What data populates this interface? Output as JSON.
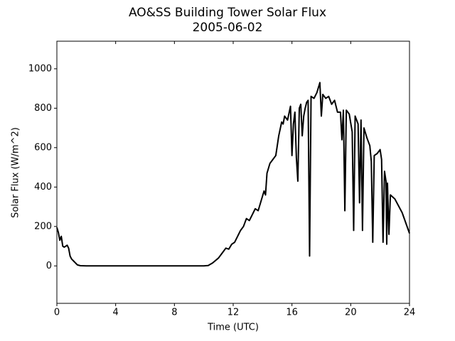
{
  "chart_data": {
    "type": "line",
    "title": "AO&SS Building Tower Solar Flux",
    "subtitle": "2005-06-02",
    "x_label": "Time (UTC)",
    "y_label": "Solar Flux (W/m^2)",
    "color": "#000000",
    "xlim": [
      0,
      24
    ],
    "xticks": [
      0,
      4,
      8,
      12,
      16,
      20,
      24
    ],
    "ylim": [
      -190,
      1140
    ],
    "yticks": [
      0,
      200,
      400,
      600,
      800,
      1000
    ],
    "x": [
      0,
      0.1,
      0.2,
      0.3,
      0.4,
      0.5,
      0.6,
      0.7,
      0.8,
      0.9,
      1.0,
      1.2,
      1.4,
      1.6,
      2,
      10,
      10.3,
      10.6,
      11,
      11.3,
      11.5,
      11.7,
      11.9,
      12.1,
      12.3,
      12.5,
      12.7,
      12.9,
      13.1,
      13.3,
      13.5,
      13.7,
      13.9,
      14.1,
      14.2,
      14.3,
      14.5,
      14.7,
      14.9,
      15.1,
      15.3,
      15.4,
      15.5,
      15.7,
      15.9,
      16.0,
      16.1,
      16.2,
      16.3,
      16.4,
      16.5,
      16.6,
      16.7,
      16.8,
      16.9,
      17.0,
      17.1,
      17.2,
      17.3,
      17.5,
      17.7,
      17.9,
      18.0,
      18.1,
      18.3,
      18.5,
      18.7,
      18.9,
      19.1,
      19.3,
      19.4,
      19.5,
      19.6,
      19.7,
      19.9,
      20.1,
      20.2,
      20.3,
      20.5,
      20.6,
      20.7,
      20.8,
      20.9,
      21.1,
      21.3,
      21.4,
      21.5,
      21.6,
      21.8,
      22.0,
      22.1,
      22.2,
      22.3,
      22.4,
      22.45,
      22.5,
      22.6,
      22.7,
      23.0,
      23.5,
      24
    ],
    "values": [
      195,
      170,
      130,
      150,
      100,
      95,
      100,
      105,
      90,
      50,
      35,
      20,
      5,
      1,
      0,
      0,
      2,
      15,
      40,
      70,
      90,
      85,
      110,
      120,
      150,
      180,
      200,
      240,
      230,
      260,
      290,
      280,
      330,
      380,
      360,
      470,
      520,
      540,
      560,
      660,
      730,
      720,
      760,
      740,
      810,
      560,
      720,
      780,
      550,
      430,
      800,
      820,
      660,
      760,
      800,
      830,
      840,
      50,
      860,
      850,
      880,
      930,
      760,
      870,
      850,
      860,
      820,
      840,
      780,
      780,
      640,
      790,
      280,
      790,
      770,
      680,
      180,
      760,
      720,
      320,
      740,
      180,
      700,
      650,
      610,
      530,
      120,
      560,
      570,
      590,
      540,
      120,
      480,
      430,
      110,
      420,
      160,
      360,
      340,
      270,
      165
    ]
  }
}
